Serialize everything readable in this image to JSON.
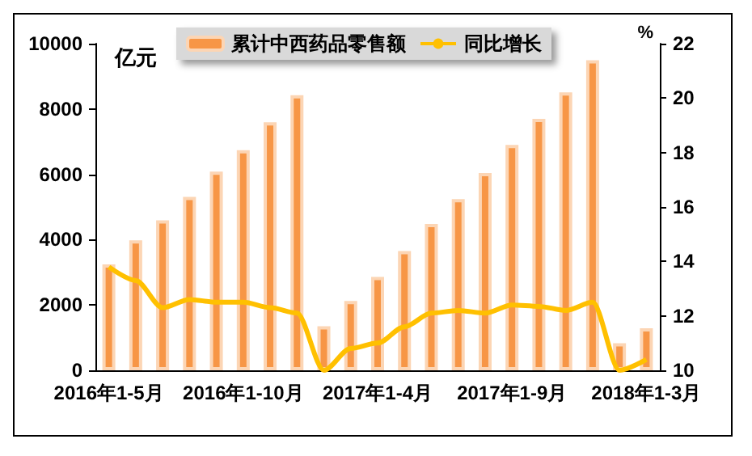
{
  "chart_data": {
    "type": "bar",
    "ylabel": "亿元",
    "y2label": "%",
    "categories": [
      "2016年1-5月",
      null,
      null,
      null,
      null,
      "2016年1-10月",
      null,
      null,
      null,
      null,
      "2017年1-4月",
      null,
      null,
      null,
      null,
      "2017年1-9月",
      null,
      null,
      null,
      null,
      "2018年1-3月"
    ],
    "series": [
      {
        "name": "累计中西药品零售额",
        "color": "#f79646",
        "values": [
          3240,
          3980,
          4590,
          5310,
          6080,
          6740,
          7590,
          8420,
          1350,
          2120,
          2860,
          3650,
          4480,
          5240,
          6040,
          6900,
          7700,
          8510,
          9490,
          830,
          1290
        ]
      },
      {
        "name": "同比增长",
        "type": "line",
        "axis": "y2",
        "color": "#ffc000",
        "values": [
          13.8,
          13.3,
          12.3,
          12.6,
          12.5,
          12.5,
          12.3,
          12.1,
          10,
          10.8,
          11.0,
          11.6,
          12.1,
          12.2,
          12.1,
          12.4,
          12.35,
          12.2,
          12.5,
          10,
          10.4
        ]
      }
    ],
    "ylim": [
      0,
      10000
    ],
    "yticks": [
      0,
      2000,
      4000,
      6000,
      8000,
      10000
    ],
    "y2lim": [
      10,
      22
    ],
    "y2ticks": [
      10,
      12,
      14,
      16,
      18,
      20,
      22
    ],
    "grid": false,
    "legend": "top",
    "marker": "none",
    "line_style": "solid"
  }
}
